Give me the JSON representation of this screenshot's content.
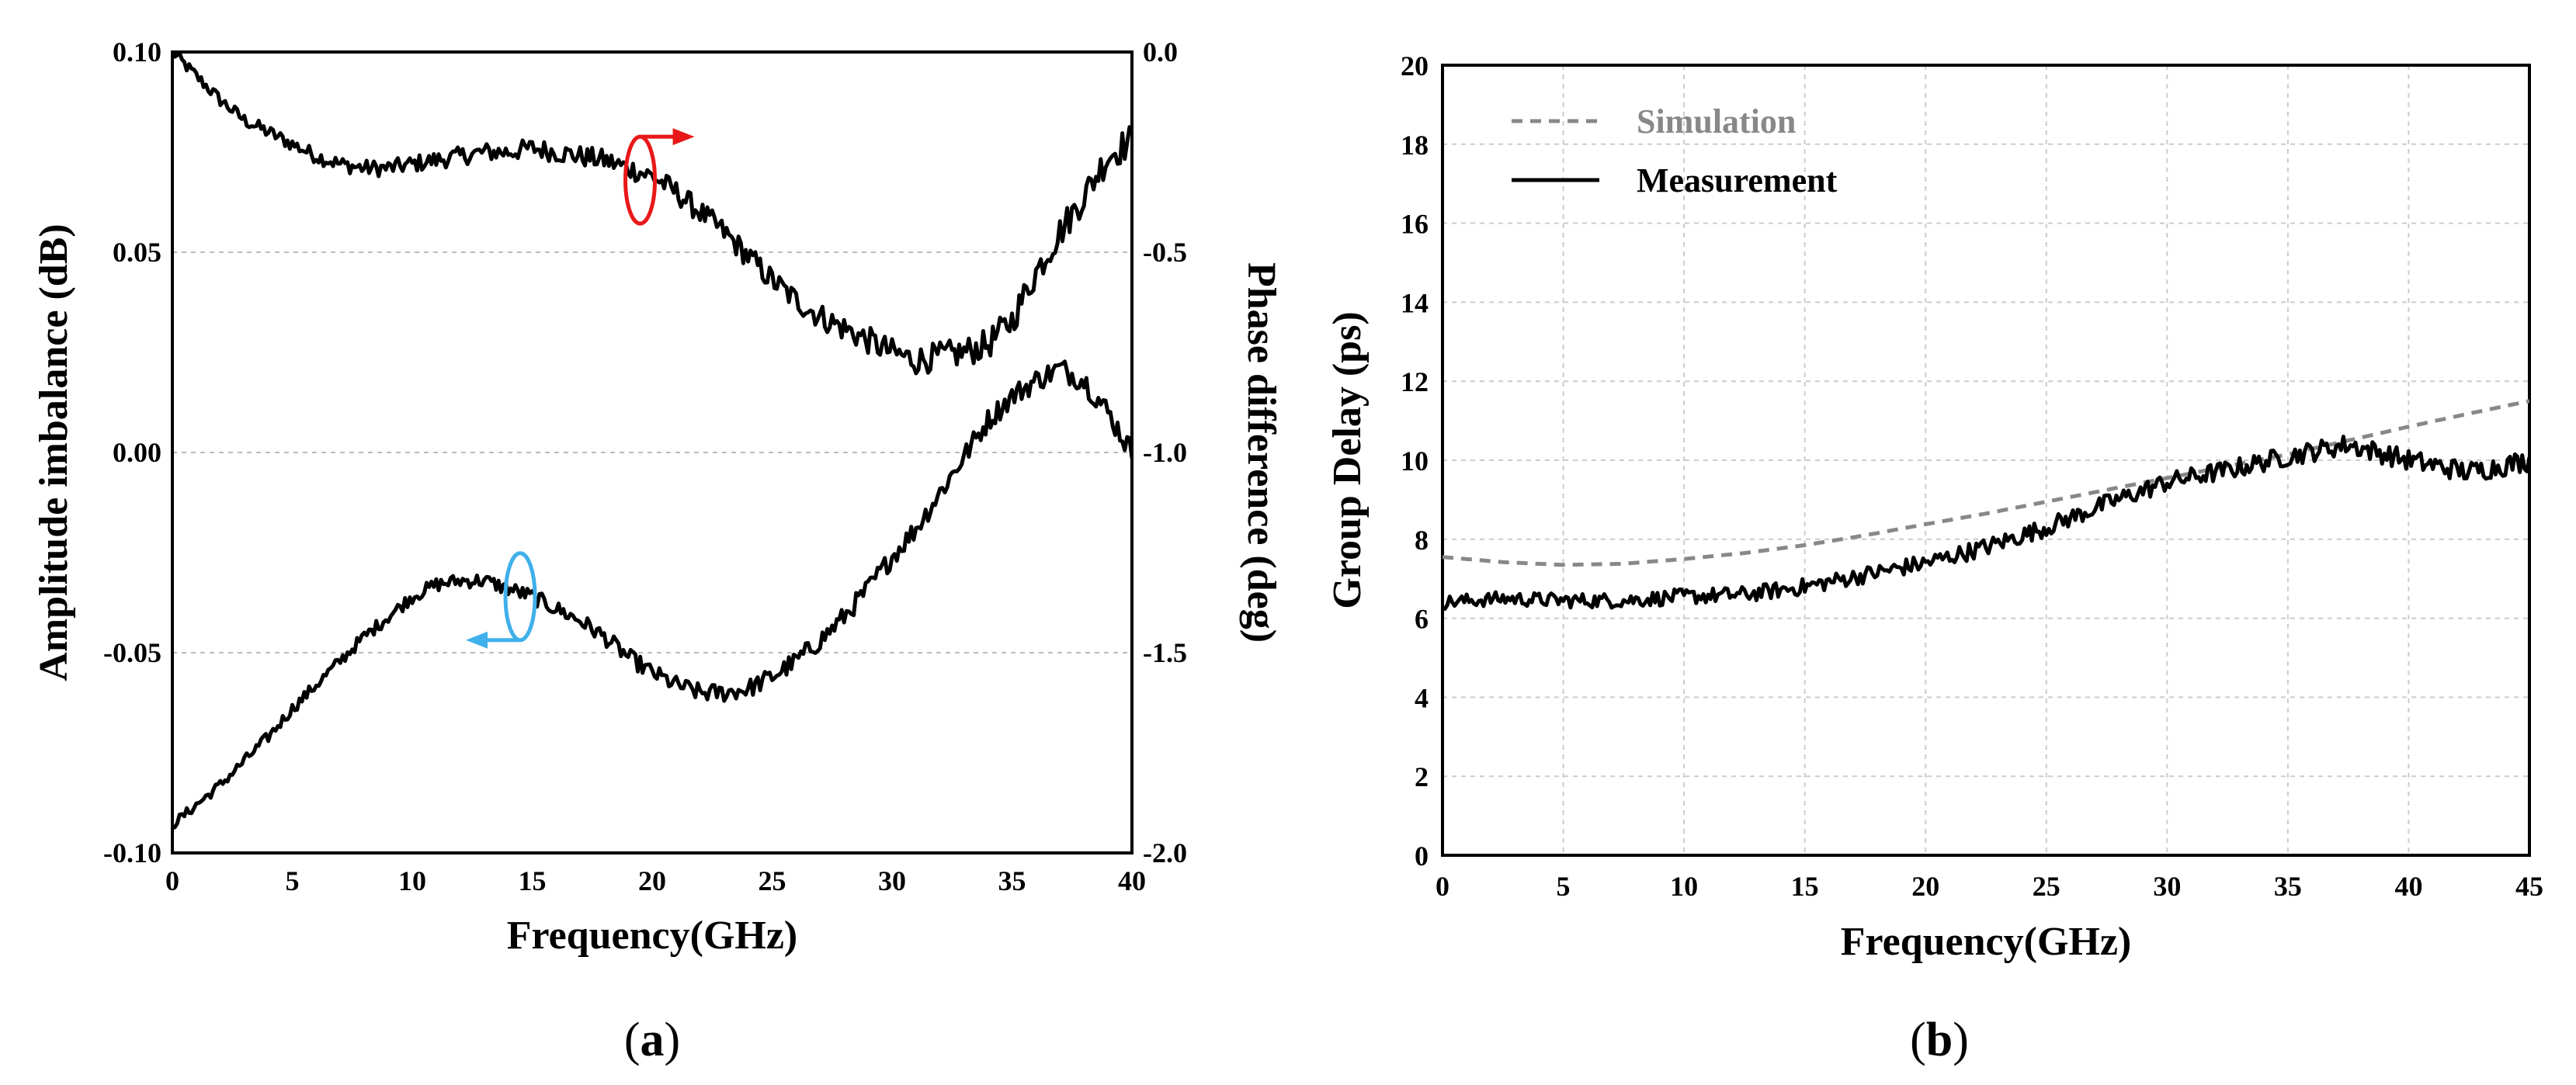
{
  "chart_data": [
    {
      "panel": "a",
      "caption_open": "(",
      "caption_letter": "a",
      "caption_close": ")",
      "type": "line",
      "xlabel": "Frequency(GHz)",
      "ylabel_left": "Amplitude imbalance (dB)",
      "ylabel_right": "Phase difference (deg)",
      "xlim": [
        0,
        40
      ],
      "ylim_left": [
        -0.1,
        0.1
      ],
      "ylim_right": [
        -2.0,
        0.0
      ],
      "x_ticks": [
        "0",
        "5",
        "10",
        "15",
        "20",
        "25",
        "30",
        "35",
        "40"
      ],
      "y_ticks_left": [
        "-0.10",
        "-0.05",
        "0.00",
        "0.05",
        "0.10"
      ],
      "y_ticks_right": [
        "-2.0",
        "-1.5",
        "-1.0",
        "-0.5",
        "0.0"
      ],
      "grid": true,
      "series": [
        {
          "name": "Phase difference",
          "axis": "right",
          "color": "#000000",
          "x": [
            0,
            1,
            2,
            3,
            4,
            5,
            6,
            7,
            8,
            9,
            10,
            11,
            12,
            13,
            14,
            15,
            16,
            17,
            18,
            19,
            20,
            21,
            22,
            23,
            24,
            25,
            26,
            27,
            28,
            29,
            30,
            31,
            32,
            33,
            34,
            35,
            36,
            37,
            38,
            39,
            40
          ],
          "values": [
            0.0,
            -0.06,
            -0.12,
            -0.17,
            -0.2,
            -0.23,
            -0.26,
            -0.28,
            -0.29,
            -0.29,
            -0.28,
            -0.27,
            -0.26,
            -0.25,
            -0.25,
            -0.24,
            -0.25,
            -0.26,
            -0.27,
            -0.29,
            -0.31,
            -0.35,
            -0.4,
            -0.45,
            -0.51,
            -0.57,
            -0.62,
            -0.66,
            -0.69,
            -0.72,
            -0.75,
            -0.77,
            -0.76,
            -0.75,
            -0.73,
            -0.67,
            -0.55,
            -0.45,
            -0.36,
            -0.26,
            -0.22
          ]
        },
        {
          "name": "Amplitude imbalance",
          "axis": "left",
          "color": "#000000",
          "x": [
            0,
            1,
            2,
            3,
            4,
            5,
            6,
            7,
            8,
            9,
            10,
            11,
            12,
            13,
            14,
            15,
            16,
            17,
            18,
            19,
            20,
            21,
            22,
            23,
            24,
            25,
            26,
            27,
            28,
            29,
            30,
            31,
            32,
            33,
            34,
            35,
            36,
            37,
            38,
            39,
            40
          ],
          "values": [
            -0.093,
            -0.088,
            -0.083,
            -0.077,
            -0.071,
            -0.064,
            -0.058,
            -0.052,
            -0.046,
            -0.041,
            -0.036,
            -0.033,
            -0.032,
            -0.032,
            -0.034,
            -0.036,
            -0.039,
            -0.042,
            -0.046,
            -0.051,
            -0.055,
            -0.058,
            -0.06,
            -0.06,
            -0.059,
            -0.056,
            -0.052,
            -0.047,
            -0.041,
            -0.034,
            -0.026,
            -0.019,
            -0.01,
            -0.001,
            0.008,
            0.014,
            0.018,
            0.021,
            0.018,
            0.01,
            0.0
          ]
        }
      ],
      "annotations": [
        {
          "text": "",
          "series": "Phase difference",
          "marker": "ellipse-arrow-right",
          "color": "#e81818",
          "x": 19.5,
          "y_right": -0.32
        },
        {
          "text": "",
          "series": "Amplitude imbalance",
          "marker": "ellipse-arrow-left",
          "color": "#3fb0ea",
          "x": 14.5,
          "y_left": -0.036
        }
      ]
    },
    {
      "panel": "b",
      "caption_open": "(",
      "caption_letter": "b",
      "caption_close": ")",
      "type": "line",
      "xlabel": "Frequency(GHz)",
      "ylabel": "Group Delay (ps)",
      "xlim": [
        0,
        45
      ],
      "ylim": [
        0,
        20
      ],
      "x_ticks": [
        "0",
        "5",
        "10",
        "15",
        "20",
        "25",
        "30",
        "35",
        "40",
        "45"
      ],
      "y_ticks": [
        "0",
        "2",
        "4",
        "6",
        "8",
        "10",
        "12",
        "14",
        "16",
        "18",
        "20"
      ],
      "grid": true,
      "legend_position": "top-left",
      "series": [
        {
          "name": "Simulation",
          "style": "dashed",
          "color": "#888888",
          "x": [
            0,
            2.5,
            5,
            7.5,
            10,
            12.5,
            15,
            17.5,
            20,
            22.5,
            25,
            27.5,
            30,
            32.5,
            35,
            37.5,
            40,
            42.5,
            45
          ],
          "values": [
            7.55,
            7.42,
            7.35,
            7.38,
            7.5,
            7.65,
            7.85,
            8.1,
            8.38,
            8.65,
            8.95,
            9.25,
            9.55,
            9.85,
            10.15,
            10.5,
            10.85,
            11.18,
            11.5
          ]
        },
        {
          "name": "Measurement",
          "style": "solid",
          "color": "#000000",
          "x": [
            0,
            2.5,
            5,
            7.5,
            10,
            12.5,
            15,
            17.5,
            20,
            22.5,
            25,
            27.5,
            30,
            32.5,
            35,
            37.5,
            40,
            42.5,
            45
          ],
          "values": [
            6.4,
            6.5,
            6.45,
            6.45,
            6.55,
            6.6,
            6.8,
            7.1,
            7.4,
            7.8,
            8.3,
            8.9,
            9.45,
            9.75,
            10.1,
            10.4,
            10.0,
            9.7,
            10.0
          ]
        }
      ]
    }
  ]
}
